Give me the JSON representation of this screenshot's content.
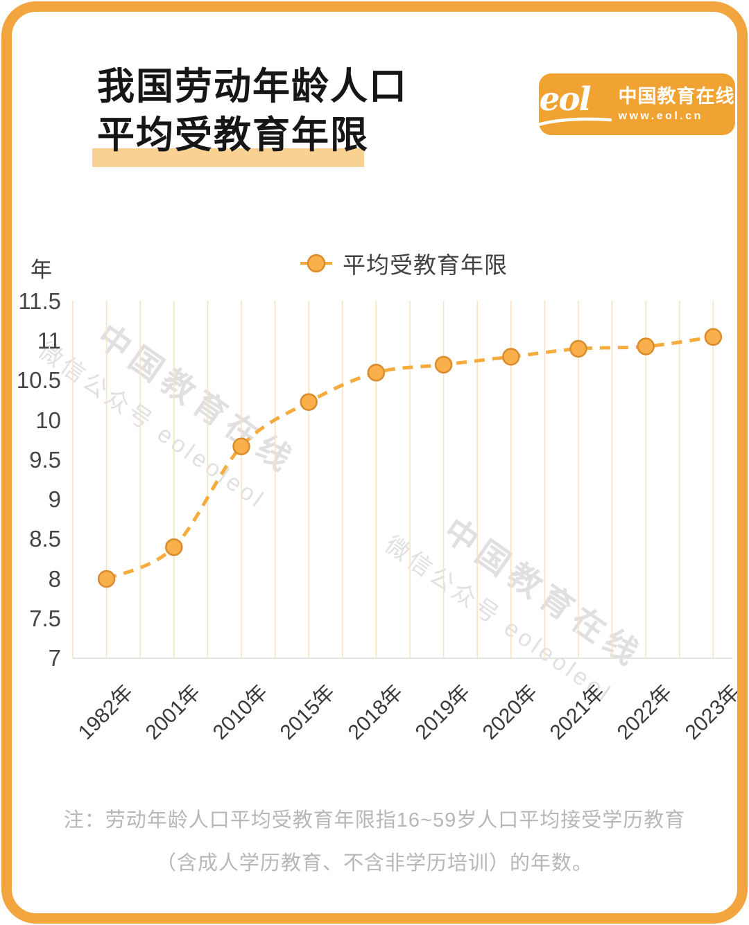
{
  "header": {
    "title_line1": "我国劳动年龄人口",
    "title_line2": "平均受教育年限",
    "logo": {
      "mark": "eol",
      "name": "中国教育在线",
      "url": "www.eol.cn"
    }
  },
  "legend": {
    "label": "平均受教育年限"
  },
  "y_axis_unit": "年",
  "chart_data": {
    "type": "line",
    "title": "我国劳动年龄人口平均受教育年限",
    "legend_entries": [
      "平均受教育年限"
    ],
    "legend_position": "top-center",
    "categories": [
      "1982年",
      "2001年",
      "2010年",
      "2015年",
      "2018年",
      "2019年",
      "2020年",
      "2021年",
      "2022年",
      "2023年"
    ],
    "values": [
      8.0,
      8.4,
      9.67,
      10.23,
      10.6,
      10.7,
      10.8,
      10.9,
      10.93,
      11.05
    ],
    "ylabel": "年",
    "ylim": [
      7,
      11.5
    ],
    "ytick_step": 0.5,
    "line_style": "dashed",
    "marker": "circle",
    "smooth": true,
    "grid": "vertical-only"
  },
  "watermark": {
    "line1": "中国教育在线",
    "line2": "微信公众号 eoleoleol"
  },
  "footnote": {
    "line1": "注：劳动年龄人口平均受教育年限指16~59岁人口平均接受学历教育",
    "line2": "（含成人学历教育、不含非学历培训）的年数。"
  },
  "colors": {
    "frame": "#F2A43E",
    "logo_bg": "#F0A233",
    "title_highlight": "#F8D193",
    "line": "#F6AB3D",
    "marker_fill": "#F9B04C",
    "marker_stroke": "#DA8C2C",
    "gridline": "#F8E2BE",
    "axis_line": "#E4E4E4",
    "title_text": "#161616",
    "tick_text": "#454545",
    "legend_text": "#424242",
    "footnote_text": "#B7B7B7"
  }
}
